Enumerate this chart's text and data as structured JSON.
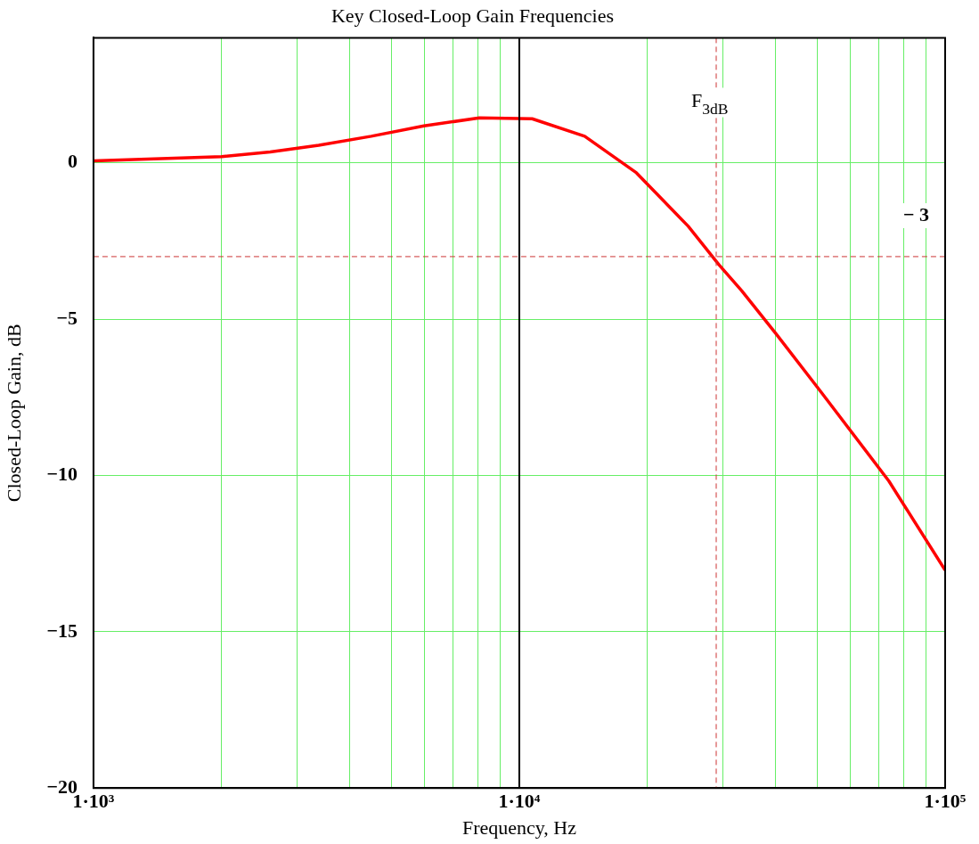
{
  "chart_data": {
    "type": "line",
    "title": "Key Closed-Loop Gain Frequencies",
    "xlabel": "Frequency, Hz",
    "ylabel": "Closed-Loop Gain, dB",
    "x": [
      1000,
      2000,
      2600,
      3380,
      4490,
      5970,
      8060,
      10720,
      14240,
      18840,
      24930,
      29440,
      33270,
      40090,
      51050,
      73760,
      100000
    ],
    "series": [
      {
        "color": "#ff0000",
        "values": [
          0.06,
          0.2,
          0.35,
          0.56,
          0.85,
          1.18,
          1.44,
          1.41,
          0.85,
          -0.32,
          -2.03,
          -3.26,
          -4.09,
          -5.47,
          -7.32,
          -10.18,
          -13.03
        ]
      }
    ],
    "log": "x",
    "xlim": [
      1000,
      100000
    ],
    "ylim": [
      -20,
      4
    ],
    "xticks": [
      {
        "value": 1000,
        "label": "1·10³"
      },
      {
        "value": 2000,
        "label": null
      },
      {
        "value": 3000,
        "label": null
      },
      {
        "value": 4000,
        "label": null
      },
      {
        "value": 5000,
        "label": null
      },
      {
        "value": 6000,
        "label": null
      },
      {
        "value": 7000,
        "label": null
      },
      {
        "value": 8000,
        "label": null
      },
      {
        "value": 9000,
        "label": null
      },
      {
        "value": 10000,
        "label": "1·10⁴"
      },
      {
        "value": 20000,
        "label": null
      },
      {
        "value": 30000,
        "label": null
      },
      {
        "value": 40000,
        "label": null
      },
      {
        "value": 50000,
        "label": null
      },
      {
        "value": 60000,
        "label": null
      },
      {
        "value": 70000,
        "label": null
      },
      {
        "value": 80000,
        "label": null
      },
      {
        "value": 90000,
        "label": null
      },
      {
        "value": 100000,
        "label": "1·10⁵"
      }
    ],
    "yticks": [
      {
        "value": -20,
        "label": "−20"
      },
      {
        "value": -15,
        "label": "−15"
      },
      {
        "value": -10,
        "label": "−10"
      },
      {
        "value": -5,
        "label": "−5"
      },
      0
    ],
    "grid": true,
    "legend": false,
    "marker": "none",
    "line_style": "solid",
    "ref_lines": [
      {
        "axis": "y",
        "value": -3,
        "label": "− 3",
        "color": "#cc3333",
        "line_style": "dashed"
      },
      {
        "axis": "x",
        "value": 29000,
        "label": "F$_{3dB}$",
        "color": "#cc3333",
        "line_style": "dashed"
      },
      {
        "axis": "x",
        "value": 10000,
        "color": "#000000",
        "line_style": "solid"
      }
    ]
  }
}
